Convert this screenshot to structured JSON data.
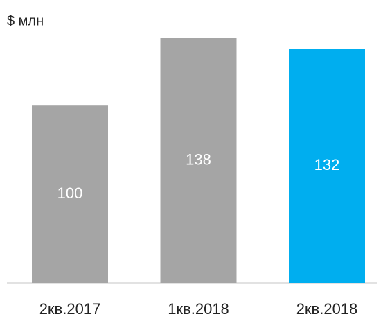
{
  "chart_data": {
    "type": "bar",
    "y_label": "$ млн",
    "categories": [
      "2кв.2017",
      "1кв.2018",
      "2кв.2018"
    ],
    "values": [
      100,
      138,
      132
    ],
    "colors": [
      "#a5a5a5",
      "#a5a5a5",
      "#00aeef"
    ]
  }
}
